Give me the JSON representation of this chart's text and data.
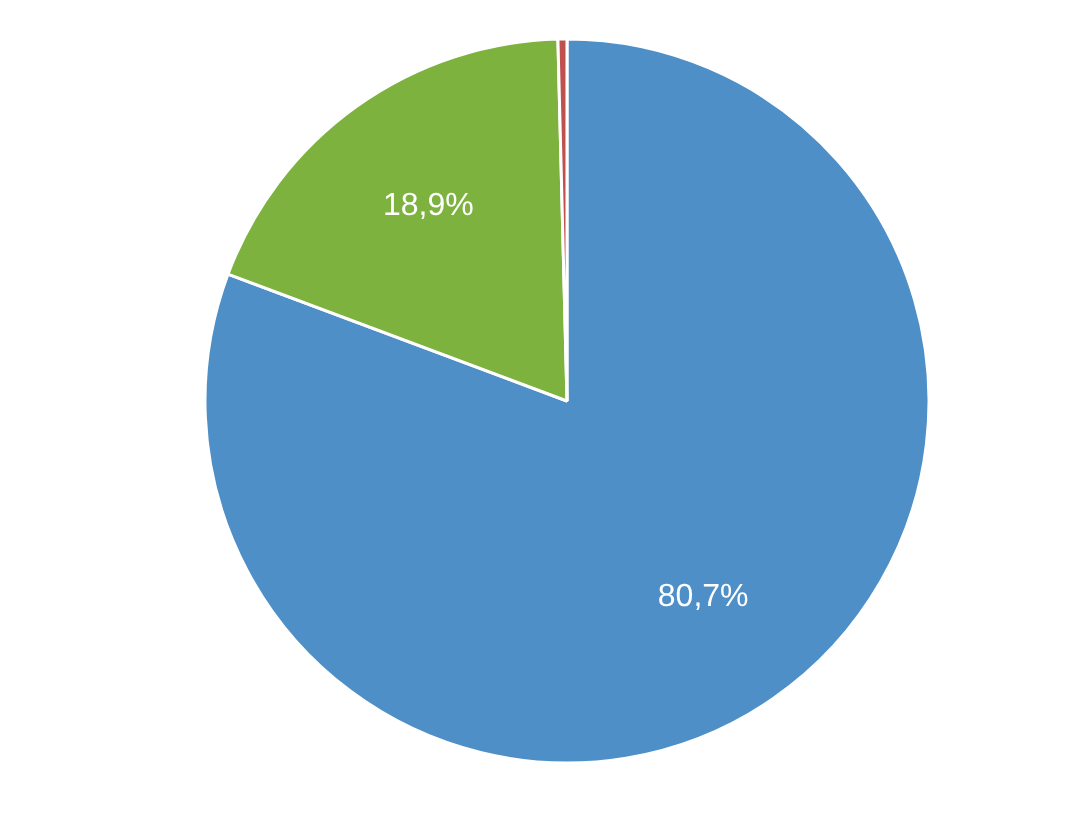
{
  "chart_data": {
    "type": "pie",
    "categories": [
      null,
      null,
      null
    ],
    "values": [
      80.7,
      18.9,
      0.4
    ],
    "colors": [
      "#4e8fc8",
      "#7db23e",
      "#c0504d"
    ],
    "value_labels": [
      "80,7%",
      "18,9%",
      null
    ]
  }
}
